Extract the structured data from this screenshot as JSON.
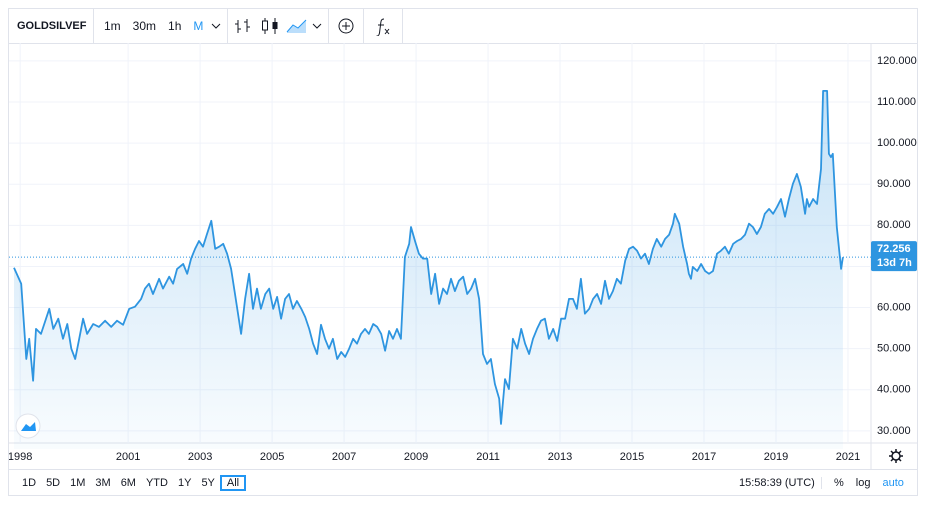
{
  "toolbar": {
    "symbol": "GOLDSILVEF",
    "intervals": [
      "1m",
      "30m",
      "1h",
      "M"
    ],
    "active_interval": 3
  },
  "chart_data": {
    "type": "area",
    "color": "#2e95e0",
    "log_scale": false,
    "grid": true,
    "xlim": [
      1997.69,
      2021.64
    ],
    "xticks": [
      1998,
      2001,
      2003,
      2005,
      2007,
      2009,
      2011,
      2013,
      2015,
      2017,
      2019,
      2021
    ],
    "ylim": [
      25.6,
      122.4
    ],
    "yticks": [
      {
        "value": 30,
        "label": "30.000"
      },
      {
        "value": 40,
        "label": "40.000"
      },
      {
        "value": 50,
        "label": "50.000"
      },
      {
        "value": 60,
        "label": "60.000"
      },
      {
        "value": 70,
        "label": "70.000"
      },
      {
        "value": 80,
        "label": "80.000"
      },
      {
        "value": 90,
        "label": "90.000"
      },
      {
        "value": 100,
        "label": "100.000"
      },
      {
        "value": 110,
        "label": "110.000"
      },
      {
        "value": 120,
        "label": "120.000"
      }
    ],
    "countdown": "13d 7h",
    "x": [
      1997.83,
      1998.03,
      1998.17,
      1998.25,
      1998.36,
      1998.44,
      1998.58,
      1998.81,
      1998.92,
      1999.06,
      1999.19,
      1999.31,
      1999.42,
      1999.53,
      1999.64,
      1999.75,
      1999.86,
      2000.03,
      2000.19,
      2000.36,
      2000.53,
      2000.69,
      2000.86,
      2001.03,
      2001.19,
      2001.36,
      2001.47,
      2001.58,
      2001.69,
      2001.86,
      2001.97,
      2002.14,
      2002.25,
      2002.36,
      2002.53,
      2002.64,
      2002.75,
      2002.86,
      2002.97,
      2003.08,
      2003.19,
      2003.31,
      2003.42,
      2003.53,
      2003.64,
      2003.75,
      2003.86,
      2003.97,
      2004.14,
      2004.25,
      2004.36,
      2004.47,
      2004.58,
      2004.69,
      2004.81,
      2004.92,
      2005.03,
      2005.14,
      2005.25,
      2005.36,
      2005.47,
      2005.58,
      2005.69,
      2005.81,
      2005.92,
      2006.03,
      2006.14,
      2006.25,
      2006.36,
      2006.47,
      2006.58,
      2006.69,
      2006.81,
      2006.92,
      2007.03,
      2007.14,
      2007.25,
      2007.36,
      2007.47,
      2007.58,
      2007.69,
      2007.81,
      2007.92,
      2008.03,
      2008.14,
      2008.25,
      2008.36,
      2008.47,
      2008.58,
      2008.69,
      2008.81,
      2008.86,
      2008.97,
      2009.08,
      2009.19,
      2009.31,
      2009.42,
      2009.53,
      2009.64,
      2009.75,
      2009.86,
      2009.97,
      2010.08,
      2010.19,
      2010.31,
      2010.42,
      2010.53,
      2010.64,
      2010.75,
      2010.86,
      2010.97,
      2011.08,
      2011.19,
      2011.31,
      2011.36,
      2011.47,
      2011.58,
      2011.69,
      2011.81,
      2011.92,
      2012.03,
      2012.14,
      2012.25,
      2012.36,
      2012.47,
      2012.58,
      2012.69,
      2012.81,
      2012.92,
      2013.03,
      2013.14,
      2013.25,
      2013.36,
      2013.47,
      2013.58,
      2013.69,
      2013.81,
      2013.92,
      2014.03,
      2014.14,
      2014.25,
      2014.36,
      2014.47,
      2014.58,
      2014.69,
      2014.81,
      2014.92,
      2015.03,
      2015.14,
      2015.25,
      2015.36,
      2015.47,
      2015.58,
      2015.69,
      2015.81,
      2015.92,
      2016.03,
      2016.14,
      2016.19,
      2016.31,
      2016.42,
      2016.53,
      2016.58,
      2016.64,
      2016.69,
      2016.81,
      2016.92,
      2017.03,
      2017.14,
      2017.25,
      2017.36,
      2017.47,
      2017.58,
      2017.69,
      2017.81,
      2017.92,
      2018.03,
      2018.14,
      2018.25,
      2018.36,
      2018.47,
      2018.58,
      2018.69,
      2018.81,
      2018.92,
      2019.03,
      2019.14,
      2019.25,
      2019.36,
      2019.47,
      2019.58,
      2019.69,
      2019.81,
      2019.86,
      2019.92,
      2020.03,
      2020.14,
      2020.25,
      2020.31,
      2020.42,
      2020.47,
      2020.53,
      2020.58,
      2020.69,
      2020.81,
      2020.86
    ],
    "values": [
      69.7,
      65.8,
      47.5,
      52.4,
      42.2,
      54.8,
      53.6,
      59.7,
      54.8,
      57.3,
      52.4,
      56.0,
      50.0,
      47.5,
      52.4,
      57.3,
      53.6,
      56.0,
      55.3,
      56.8,
      55.3,
      56.8,
      55.8,
      59.7,
      60.2,
      62.1,
      64.6,
      65.8,
      63.3,
      67.0,
      64.6,
      67.5,
      65.8,
      69.4,
      70.6,
      68.2,
      71.9,
      74.3,
      76.2,
      74.8,
      77.9,
      81.1,
      74.3,
      74.8,
      75.5,
      73.1,
      69.4,
      63.3,
      53.6,
      62.1,
      68.2,
      59.7,
      64.6,
      59.7,
      63.3,
      64.6,
      59.7,
      62.6,
      57.3,
      62.1,
      63.3,
      59.7,
      61.6,
      59.7,
      57.7,
      54.8,
      51.2,
      48.7,
      55.8,
      52.4,
      50.0,
      52.4,
      47.5,
      49.2,
      48.0,
      50.0,
      52.4,
      51.2,
      53.6,
      54.8,
      53.6,
      56.0,
      55.3,
      53.6,
      49.5,
      54.3,
      52.4,
      54.8,
      52.4,
      72.3,
      75.5,
      79.6,
      76.2,
      73.1,
      71.9,
      71.9,
      63.3,
      68.2,
      60.9,
      64.6,
      63.3,
      67.0,
      64.0,
      66.5,
      67.5,
      63.3,
      64.6,
      67.0,
      62.1,
      48.7,
      46.3,
      47.5,
      41.4,
      37.8,
      31.7,
      42.6,
      40.2,
      52.4,
      50.0,
      54.8,
      51.2,
      48.7,
      52.4,
      54.8,
      56.8,
      57.3,
      52.4,
      54.8,
      51.9,
      57.3,
      57.3,
      62.1,
      62.1,
      59.7,
      67.0,
      58.5,
      59.7,
      62.1,
      63.3,
      60.9,
      66.5,
      62.1,
      64.0,
      67.0,
      65.8,
      71.4,
      74.3,
      74.8,
      73.8,
      71.9,
      73.1,
      70.6,
      74.3,
      76.7,
      74.8,
      76.7,
      77.7,
      80.4,
      82.8,
      80.4,
      74.8,
      70.6,
      68.2,
      67.0,
      69.9,
      68.9,
      70.6,
      68.9,
      68.2,
      68.9,
      73.1,
      73.8,
      74.8,
      73.1,
      75.5,
      76.2,
      76.7,
      77.7,
      80.4,
      79.6,
      77.9,
      79.6,
      82.8,
      84.0,
      82.8,
      84.5,
      86.4,
      82.1,
      86.4,
      90.1,
      92.5,
      89.4,
      82.8,
      86.4,
      84.5,
      86.4,
      85.2,
      93.7,
      112.7,
      112.7,
      97.4,
      96.6,
      97.4,
      79.6,
      69.4,
      72.256
    ]
  },
  "bottom_bar": {
    "ranges": [
      "1D",
      "5D",
      "1M",
      "3M",
      "6M",
      "YTD",
      "1Y",
      "5Y",
      "All"
    ],
    "active_range": 8,
    "time": "15:58:39 (UTC)",
    "options": [
      "%",
      "log",
      "auto"
    ]
  }
}
